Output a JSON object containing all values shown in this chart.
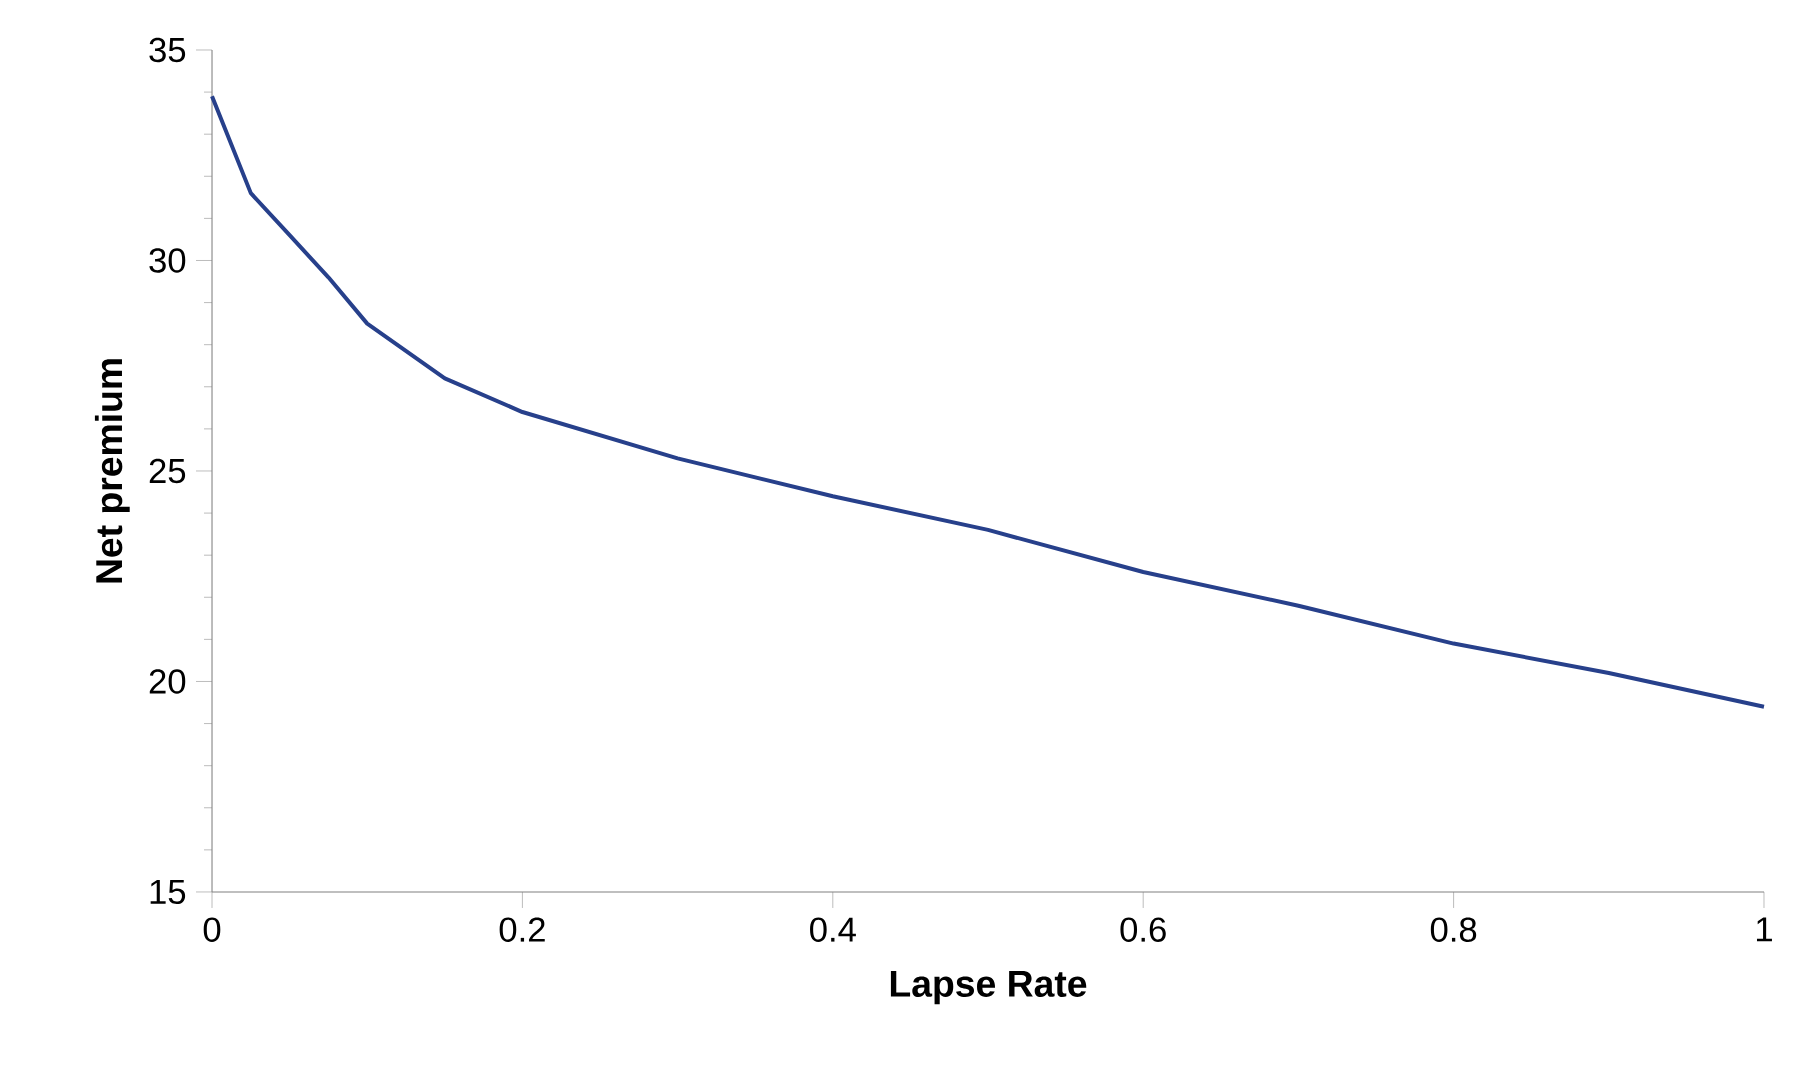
{
  "chart_data": {
    "type": "line",
    "xlabel": "Lapse Rate",
    "ylabel": "Net premium",
    "x": [
      0,
      0.025,
      0.05,
      0.075,
      0.1,
      0.15,
      0.2,
      0.3,
      0.4,
      0.5,
      0.6,
      0.7,
      0.8,
      0.9,
      1
    ],
    "series": [
      {
        "color": "#27408b",
        "values": [
          33.9,
          31.6,
          30.6,
          29.6,
          28.5,
          27.2,
          26.4,
          25.3,
          24.4,
          23.6,
          22.6,
          21.8,
          20.9,
          20.2,
          19.4
        ]
      }
    ],
    "xlim": [
      0,
      1
    ],
    "ylim": [
      15,
      35
    ],
    "xticks": [
      0,
      0.2,
      0.4,
      0.6,
      0.8,
      1
    ],
    "yticks": [
      15,
      20,
      25,
      30,
      35
    ],
    "grid": false,
    "marker": "none",
    "line_style": "solid"
  }
}
